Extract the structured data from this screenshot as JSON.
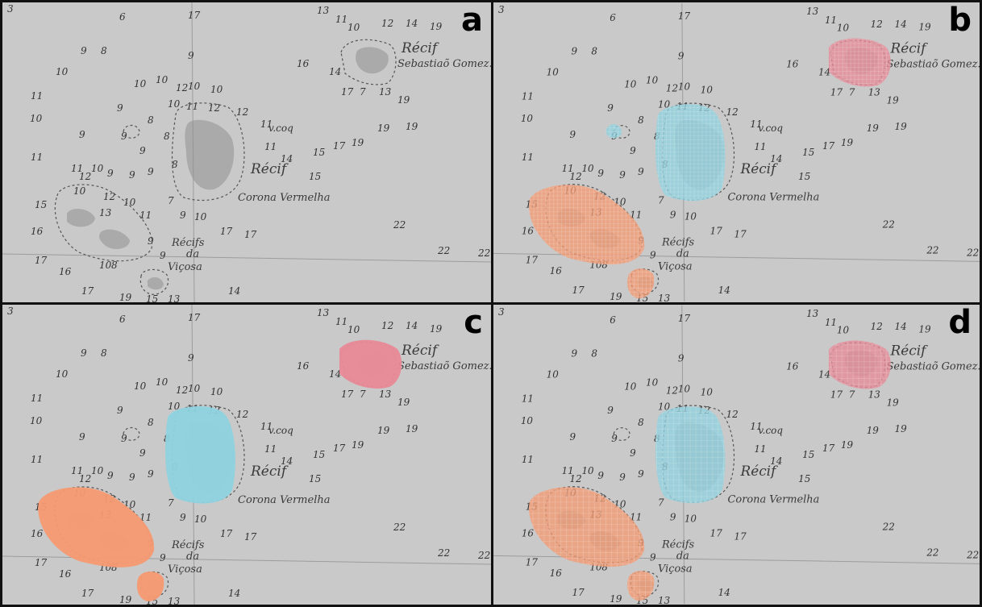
{
  "panels": [
    {
      "id": "a",
      "letter": "a",
      "overlay": "none"
    },
    {
      "id": "b",
      "letter": "b",
      "overlay": "gridded"
    },
    {
      "id": "c",
      "letter": "c",
      "overlay": "solid"
    },
    {
      "id": "d",
      "letter": "d",
      "overlay": "gridded-coarse"
    }
  ],
  "map_labels": {
    "recif_top": "Récif",
    "sebastiao": "Sebastiaõ Gomez.",
    "recif_mid": "Récif",
    "corona": "Corona Vermelha",
    "recifs": "Récifs",
    "da": "da",
    "vicosa": "Viçosa"
  },
  "colors": {
    "background": "#c9c9c9",
    "overlay_pink": "#e88a97",
    "overlay_cyan": "#8fd3e0",
    "overlay_orange": "#f59a72",
    "frame": "#111111"
  }
}
